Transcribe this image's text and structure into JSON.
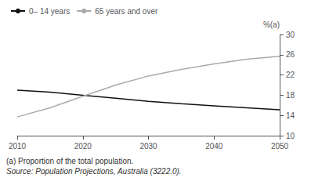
{
  "chart_data": {
    "type": "line",
    "x": [
      2010,
      2015,
      2020,
      2025,
      2030,
      2035,
      2040,
      2045,
      2050
    ],
    "series": [
      {
        "name": "0– 14 years",
        "color": "#111111",
        "values": [
          19.0,
          18.6,
          18.0,
          17.4,
          16.8,
          16.3,
          15.9,
          15.5,
          15.1
        ]
      },
      {
        "name": "65 years and over",
        "color": "#aaaaaa",
        "values": [
          13.7,
          15.5,
          17.8,
          20.0,
          21.8,
          23.1,
          24.2,
          25.1,
          25.7
        ]
      }
    ],
    "ylabel": "%(a)",
    "xlim": [
      2010,
      2050
    ],
    "ylim": [
      10,
      30
    ],
    "xticks": [
      2010,
      2020,
      2030,
      2040,
      2050
    ],
    "yticks": [
      10,
      14,
      18,
      22,
      26,
      30
    ],
    "annotations": [
      "(a) Proportion of the total population.",
      "Source: Population Projections, Australia (3222.0)."
    ],
    "grid": false,
    "legend": "top left"
  }
}
